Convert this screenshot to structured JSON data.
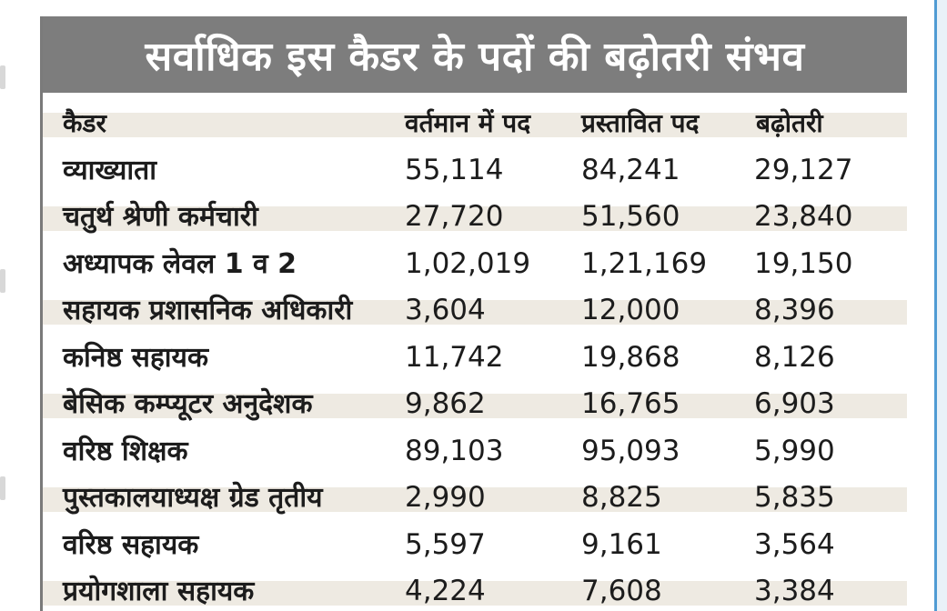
{
  "title": "सर्वाधिक इस कैडर के पदों की बढ़ोतरी संभव",
  "table": {
    "headers": [
      "कैडर",
      "वर्तमान में पद",
      "प्रस्तावित पद",
      "बढ़ोतरी"
    ],
    "rows": [
      [
        "व्याख्याता",
        "55,114",
        "84,241",
        "29,127"
      ],
      [
        "चतुर्थ श्रेणी कर्मचारी",
        "27,720",
        "51,560",
        "23,840"
      ],
      [
        "अध्यापक लेवल 1 व 2",
        "1,02,019",
        "1,21,169",
        "19,150"
      ],
      [
        "सहायक प्रशासनिक अधिकारी",
        "3,604",
        "12,000",
        "8,396"
      ],
      [
        "कनिष्ठ सहायक",
        "11,742",
        "19,868",
        "8,126"
      ],
      [
        "बेसिक कम्प्यूटर अनुदेशक",
        "9,862",
        "16,765",
        "6,903"
      ],
      [
        "वरिष्ठ शिक्षक",
        "89,103",
        "95,093",
        "5,990"
      ],
      [
        "पुस्तकालयाध्यक्ष ग्रेड तृतीय",
        "2,990",
        "8,825",
        "5,835"
      ],
      [
        "वरिष्ठ सहायक",
        "5,597",
        "9,161",
        "3,564"
      ],
      [
        "प्रयोगशाला सहायक",
        "4,224",
        "7,608",
        "3,384"
      ]
    ]
  },
  "colors": {
    "title_bar": "#7d7d7d",
    "title_text": "#ffffff",
    "row_stripe": "#eeeae2",
    "text": "#1c1c1c",
    "accent_rule": "#4f9bd3"
  }
}
